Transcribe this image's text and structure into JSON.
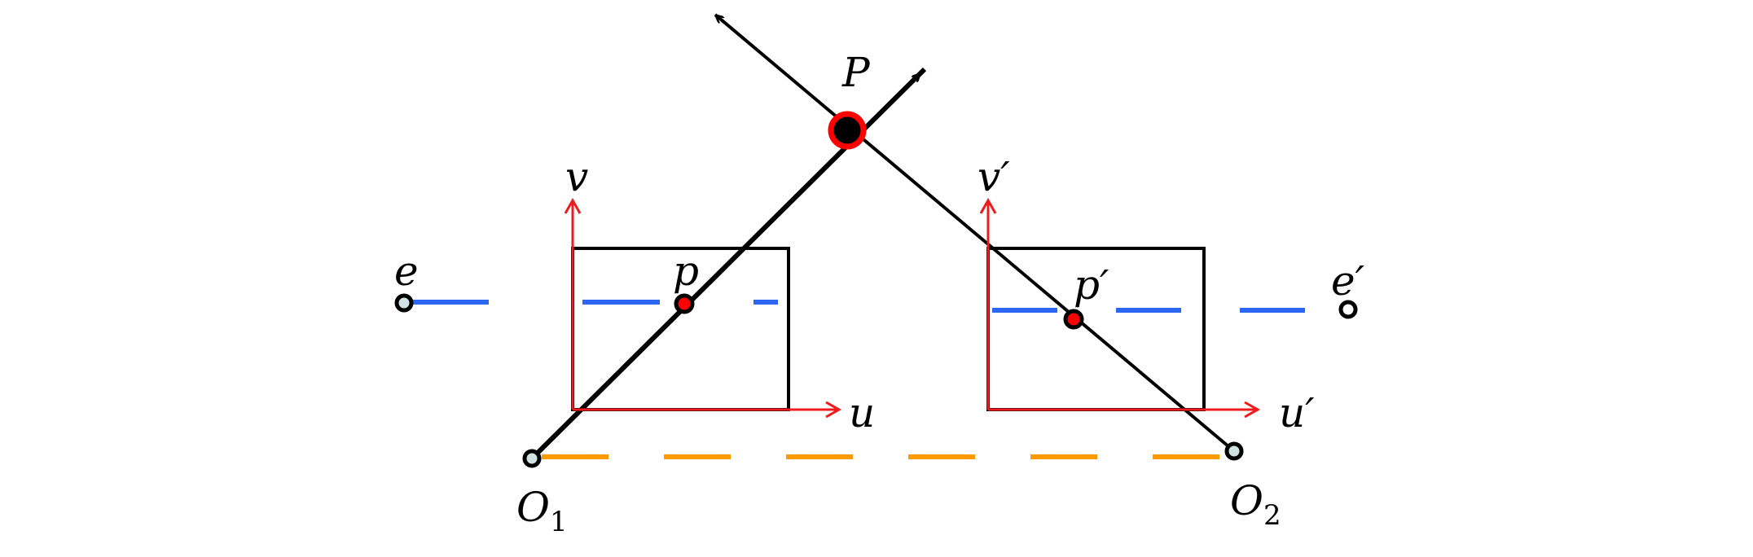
{
  "labels": {
    "P": "P",
    "p": "p",
    "p_prime": "p′",
    "e": "e",
    "e_prime": "e′",
    "v": "v",
    "v_prime": "v′",
    "u": "u",
    "u_prime": "u′",
    "O": "O",
    "sub1": "1",
    "sub2": "2"
  },
  "colors": {
    "ray": "#000000",
    "axis": "#ee1c1c",
    "epipolar_line": "#2b67f0",
    "baseline": "#ff9a00",
    "point_fill": "#000000",
    "point_outline": "#ff0000",
    "camera_fill": "#cfe3e3"
  }
}
